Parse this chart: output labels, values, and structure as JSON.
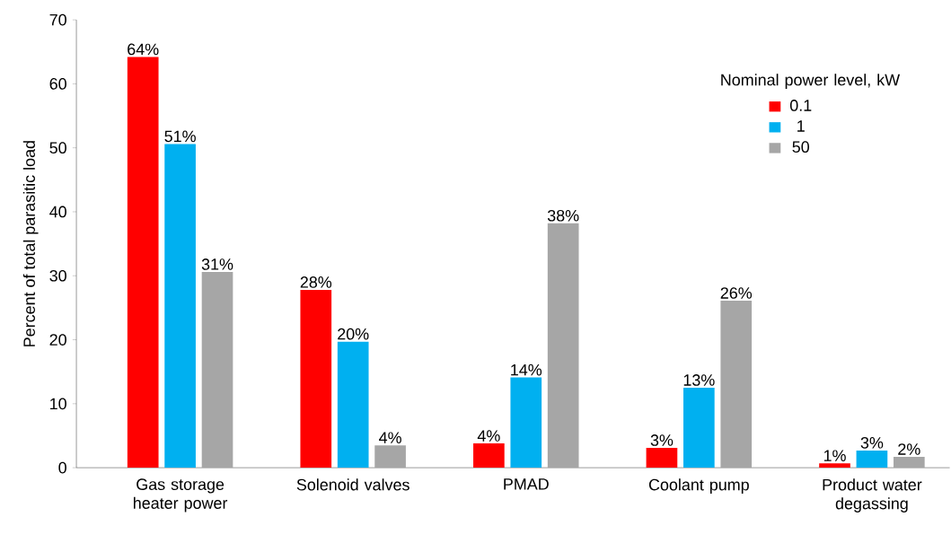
{
  "chart_data": {
    "type": "bar",
    "ylabel": "Percent of total parasitic load",
    "legend_title": "Nominal power level, kW",
    "categories": [
      "Gas storage heater power",
      "Solenoid valves",
      "PMAD",
      "Coolant pump",
      "Product water degassing"
    ],
    "series": [
      {
        "name": "0.1",
        "color": "#ff0000",
        "values": [
          64.2,
          27.8,
          3.8,
          3.1,
          0.7
        ],
        "value_labels": [
          "64%",
          "28%",
          "4%",
          "3%",
          "1%"
        ]
      },
      {
        "name": "1",
        "color": "#00b0f0",
        "values": [
          50.6,
          19.7,
          14.1,
          12.5,
          2.7
        ],
        "value_labels": [
          "51%",
          "20%",
          "14%",
          "13%",
          "3%"
        ]
      },
      {
        "name": "50",
        "color": "#a6a6a6",
        "values": [
          30.6,
          3.5,
          38.2,
          26.1,
          1.7
        ],
        "value_labels": [
          "31%",
          "4%",
          "38%",
          "26%",
          "2%"
        ]
      }
    ],
    "ylim": [
      0,
      70
    ],
    "yticks": [
      0,
      10,
      20,
      30,
      40,
      50,
      60,
      70
    ],
    "grid": false,
    "legend": "top right"
  }
}
